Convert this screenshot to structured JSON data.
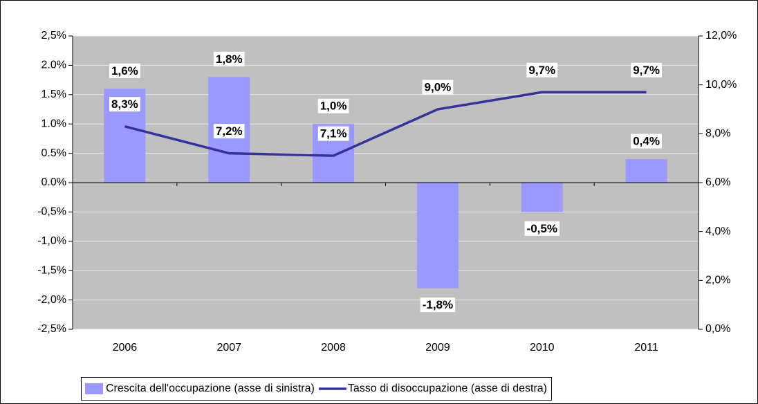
{
  "chart_data": {
    "type": "bar",
    "categories": [
      "2006",
      "2007",
      "2008",
      "2009",
      "2010",
      "2011"
    ],
    "series": [
      {
        "name": "Crescita dell'occupazione (asse di sinistra)",
        "type": "bar",
        "color": "#9999ff",
        "values": [
          1.6,
          1.8,
          1.0,
          -1.8,
          -0.5,
          0.4
        ],
        "value_labels": [
          "1,6%",
          "1,8%",
          "1,0%",
          "-1,8%",
          "-0,5%",
          "0,4%"
        ]
      },
      {
        "name": "Tasso di disoccupazione (asse di destra)",
        "type": "line",
        "color": "#333399",
        "axis": "y2",
        "values": [
          8.3,
          7.2,
          7.1,
          9.0,
          9.7,
          9.7
        ],
        "value_labels": [
          "8,3%",
          "7,2%",
          "7,1%",
          "9,0%",
          "9,7%",
          "9,7%"
        ]
      }
    ],
    "ylim": [
      -2.5,
      2.5
    ],
    "yticks": [
      {
        "value": 2.5,
        "label": "2,5%"
      },
      {
        "value": 2.0,
        "label": "2.0%"
      },
      {
        "value": 1.5,
        "label": "1.5%"
      },
      {
        "value": 1.0,
        "label": "1.0%"
      },
      {
        "value": 0.5,
        "label": "0.5%"
      },
      {
        "value": 0.0,
        "label": "0.0%"
      },
      {
        "value": -0.5,
        "label": "-0,5%"
      },
      {
        "value": -1.0,
        "label": "-1,0%"
      },
      {
        "value": -1.5,
        "label": "-1,5%"
      },
      {
        "value": -2.0,
        "label": "-2,0%"
      },
      {
        "value": -2.5,
        "label": "-2,5%"
      }
    ],
    "y2lim": [
      0,
      12
    ],
    "y2ticks": [
      {
        "value": 12,
        "label": "12,0%"
      },
      {
        "value": 10,
        "label": "10,0%"
      },
      {
        "value": 8,
        "label": "8,0%"
      },
      {
        "value": 6,
        "label": "6,0%"
      },
      {
        "value": 4,
        "label": "4,0%"
      },
      {
        "value": 2,
        "label": "2,0%"
      },
      {
        "value": 0,
        "label": "0,0%"
      }
    ],
    "grid": true,
    "legend": "bottom"
  }
}
